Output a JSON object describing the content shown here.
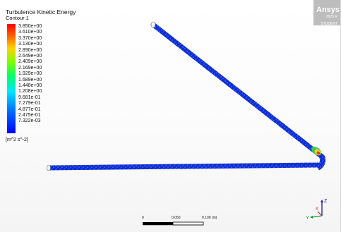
{
  "legend": {
    "title": "Turbulence Kinetic Energy",
    "subtitle": "Contour 1",
    "ticks": [
      "3.850e+00",
      "3.610e+00",
      "3.370e+00",
      "3.130e+00",
      "2.890e+00",
      "2.649e+00",
      "2.409e+00",
      "2.169e+00",
      "1.929e+00",
      "1.689e+00",
      "1.448e+00",
      "1.208e+00",
      "9.681e-01",
      "7.279e-01",
      "4.877e-01",
      "2.475e-01",
      "7.322e-03"
    ],
    "units": "[m^2 s^-2]"
  },
  "branding": {
    "brand": "Ansys",
    "year": "2023 R",
    "edition": "STUDENT"
  },
  "scale": {
    "labels": [
      "0",
      "0.050",
      "0.100 (m)"
    ]
  },
  "axes": {
    "z": "Z",
    "y": "Y",
    "x": "X"
  },
  "colors": {
    "pipe": "#0b2dd6",
    "hot_red": "#e6361e",
    "hot_yellow": "#f0d024",
    "hot_green": "#3fd14a"
  }
}
